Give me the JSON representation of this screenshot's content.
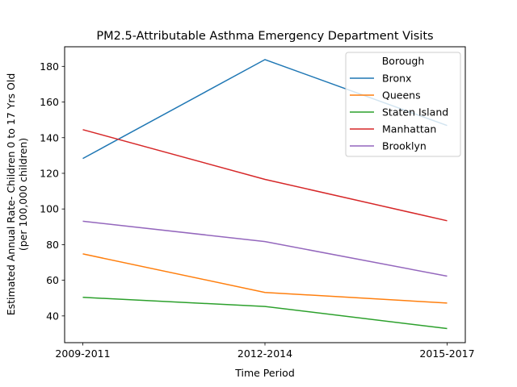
{
  "chart_data": {
    "type": "line",
    "title": "PM2.5-Attributable Asthma Emergency Department Visits",
    "xlabel": "Time Period",
    "ylabel_line1": "Estimated Annual Rate- Children 0 to 17 Yrs Old",
    "ylabel_line2": "(per 100,000 children)",
    "categories": [
      "2009-2011",
      "2012-2014",
      "2015-2017"
    ],
    "ylim": [
      25,
      191
    ],
    "yticks": [
      40,
      60,
      80,
      100,
      120,
      140,
      160,
      180
    ],
    "grid": false,
    "legend": {
      "title": "Borough",
      "placement": "top-right"
    },
    "series": [
      {
        "name": "Bronx",
        "color": "#1f77b4",
        "values": [
          128.3,
          183.8,
          146.8
        ]
      },
      {
        "name": "Queens",
        "color": "#ff7f0e",
        "values": [
          74.8,
          53.2,
          47.2
        ]
      },
      {
        "name": "Staten Island",
        "color": "#2ca02c",
        "values": [
          50.4,
          45.3,
          32.9
        ]
      },
      {
        "name": "Manhattan",
        "color": "#d62728",
        "values": [
          144.5,
          116.6,
          93.4
        ]
      },
      {
        "name": "Brooklyn",
        "color": "#9467bd",
        "values": [
          93.1,
          81.7,
          62.3
        ]
      }
    ]
  }
}
